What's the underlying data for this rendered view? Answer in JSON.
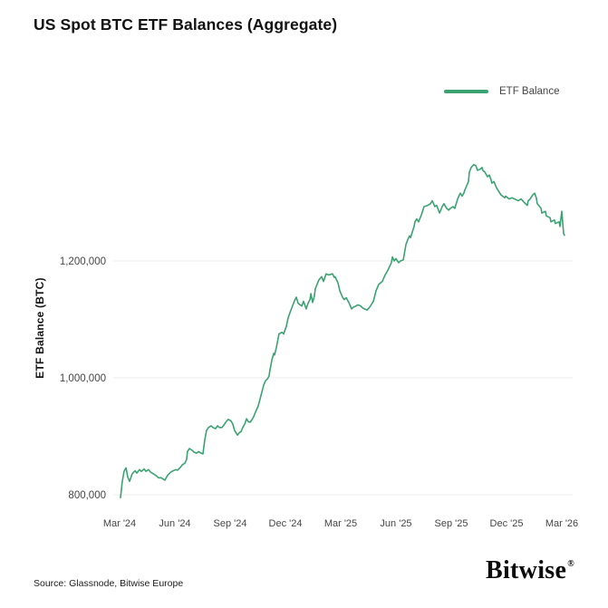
{
  "header": {
    "title": "US Spot BTC ETF Balances (Aggregate)"
  },
  "legend": {
    "items": [
      {
        "label": "ETF Balance",
        "color": "#3ba272"
      }
    ]
  },
  "footer": {
    "source": "Source: Glassnode, Bitwise Europe",
    "brand": "Bitwise",
    "brand_mark": "®"
  },
  "colors": {
    "line": "#3ba272",
    "gridline": "#ececec",
    "tick_text": "#454545",
    "background": "#ffffff"
  },
  "chart_data": {
    "type": "line",
    "title": "US Spot BTC ETF Balances (Aggregate)",
    "xlabel": "",
    "ylabel": "ETF Balance (BTC)",
    "grid": "horizontal-only",
    "legend_position": "top-right",
    "x_unit": "decimal_year",
    "x_range": [
      2024.167,
      2026.167
    ],
    "ylim": [
      790000,
      1380000
    ],
    "x_ticks": [
      {
        "label": "Mar '24",
        "t": 2024.167
      },
      {
        "label": "Jun '24",
        "t": 2024.417
      },
      {
        "label": "Sep '24",
        "t": 2024.667
      },
      {
        "label": "Dec '24",
        "t": 2024.917
      },
      {
        "label": "Mar '25",
        "t": 2025.167
      },
      {
        "label": "Jun '25",
        "t": 2025.417
      },
      {
        "label": "Sep '25",
        "t": 2025.667
      },
      {
        "label": "Dec '25",
        "t": 2025.917
      },
      {
        "label": "Mar '26",
        "t": 2026.167
      }
    ],
    "y_ticks": [
      {
        "label": "800,000",
        "v": 800000
      },
      {
        "label": "1,000,000",
        "v": 1000000
      },
      {
        "label": "1,200,000",
        "v": 1200000
      }
    ],
    "series": [
      {
        "name": "ETF Balance",
        "color": "#3ba272",
        "points": [
          [
            2024.171,
            795000
          ],
          [
            2024.179,
            822000
          ],
          [
            2024.187,
            840000
          ],
          [
            2024.196,
            846000
          ],
          [
            2024.204,
            830000
          ],
          [
            2024.212,
            823000
          ],
          [
            2024.224,
            836000
          ],
          [
            2024.237,
            841000
          ],
          [
            2024.245,
            837000
          ],
          [
            2024.257,
            843000
          ],
          [
            2024.265,
            840000
          ],
          [
            2024.278,
            844000
          ],
          [
            2024.286,
            840000
          ],
          [
            2024.298,
            843000
          ],
          [
            2024.306,
            839000
          ],
          [
            2024.319,
            836000
          ],
          [
            2024.331,
            833000
          ],
          [
            2024.343,
            829000
          ],
          [
            2024.355,
            829000
          ],
          [
            2024.372,
            825000
          ],
          [
            2024.384,
            833000
          ],
          [
            2024.396,
            838000
          ],
          [
            2024.409,
            841000
          ],
          [
            2024.421,
            843000
          ],
          [
            2024.429,
            842000
          ],
          [
            2024.442,
            847000
          ],
          [
            2024.45,
            851000
          ],
          [
            2024.462,
            854000
          ],
          [
            2024.47,
            860000
          ],
          [
            2024.474,
            874000
          ],
          [
            2024.483,
            879000
          ],
          [
            2024.495,
            876000
          ],
          [
            2024.503,
            873000
          ],
          [
            2024.515,
            871000
          ],
          [
            2024.524,
            874000
          ],
          [
            2024.536,
            871000
          ],
          [
            2024.544,
            870000
          ],
          [
            2024.552,
            893000
          ],
          [
            2024.56,
            910000
          ],
          [
            2024.569,
            915000
          ],
          [
            2024.581,
            918000
          ],
          [
            2024.589,
            915000
          ],
          [
            2024.601,
            913000
          ],
          [
            2024.61,
            918000
          ],
          [
            2024.618,
            915000
          ],
          [
            2024.63,
            915000
          ],
          [
            2024.642,
            921000
          ],
          [
            2024.651,
            926000
          ],
          [
            2024.659,
            929000
          ],
          [
            2024.671,
            926000
          ],
          [
            2024.679,
            921000
          ],
          [
            2024.687,
            910000
          ],
          [
            2024.7,
            902000
          ],
          [
            2024.708,
            906000
          ],
          [
            2024.716,
            908000
          ],
          [
            2024.724,
            915000
          ],
          [
            2024.733,
            921000
          ],
          [
            2024.741,
            930000
          ],
          [
            2024.749,
            925000
          ],
          [
            2024.757,
            924000
          ],
          [
            2024.765,
            928000
          ],
          [
            2024.774,
            934000
          ],
          [
            2024.782,
            942000
          ],
          [
            2024.794,
            952000
          ],
          [
            2024.802,
            963000
          ],
          [
            2024.81,
            975000
          ],
          [
            2024.819,
            988000
          ],
          [
            2024.827,
            995000
          ],
          [
            2024.835,
            998000
          ],
          [
            2024.843,
            1003000
          ],
          [
            2024.847,
            1013000
          ],
          [
            2024.856,
            1031000
          ],
          [
            2024.864,
            1042000
          ],
          [
            2024.868,
            1039000
          ],
          [
            2024.876,
            1052000
          ],
          [
            2024.888,
            1075000
          ],
          [
            2024.901,
            1078000
          ],
          [
            2024.909,
            1075000
          ],
          [
            2024.921,
            1088000
          ],
          [
            2024.929,
            1102000
          ],
          [
            2024.938,
            1112000
          ],
          [
            2024.946,
            1120000
          ],
          [
            2024.958,
            1132000
          ],
          [
            2024.966,
            1138000
          ],
          [
            2024.974,
            1128000
          ],
          [
            2024.983,
            1125000
          ],
          [
            2024.991,
            1123000
          ],
          [
            2024.999,
            1131000
          ],
          [
            2025.007,
            1122000
          ],
          [
            2025.011,
            1118000
          ],
          [
            2025.02,
            1128000
          ],
          [
            2025.028,
            1134000
          ],
          [
            2025.032,
            1144000
          ],
          [
            2025.04,
            1129000
          ],
          [
            2025.048,
            1140000
          ],
          [
            2025.052,
            1152000
          ],
          [
            2025.06,
            1160000
          ],
          [
            2025.069,
            1168000
          ],
          [
            2025.081,
            1173000
          ],
          [
            2025.089,
            1165000
          ],
          [
            2025.101,
            1178000
          ],
          [
            2025.114,
            1176000
          ],
          [
            2025.122,
            1177000
          ],
          [
            2025.13,
            1178000
          ],
          [
            2025.138,
            1172000
          ],
          [
            2025.142,
            1173000
          ],
          [
            2025.155,
            1162000
          ],
          [
            2025.163,
            1149000
          ],
          [
            2025.175,
            1138000
          ],
          [
            2025.183,
            1134000
          ],
          [
            2025.192,
            1137000
          ],
          [
            2025.204,
            1129000
          ],
          [
            2025.216,
            1118000
          ],
          [
            2025.224,
            1121000
          ],
          [
            2025.237,
            1123000
          ],
          [
            2025.245,
            1125000
          ],
          [
            2025.257,
            1123000
          ],
          [
            2025.265,
            1120000
          ],
          [
            2025.274,
            1118000
          ],
          [
            2025.286,
            1116000
          ],
          [
            2025.298,
            1121000
          ],
          [
            2025.315,
            1131000
          ],
          [
            2025.327,
            1149000
          ],
          [
            2025.339,
            1160000
          ],
          [
            2025.355,
            1165000
          ],
          [
            2025.368,
            1176000
          ],
          [
            2025.38,
            1184000
          ],
          [
            2025.396,
            1197000
          ],
          [
            2025.401,
            1207000
          ],
          [
            2025.409,
            1200000
          ],
          [
            2025.417,
            1204000
          ],
          [
            2025.429,
            1197000
          ],
          [
            2025.437,
            1200000
          ],
          [
            2025.45,
            1202000
          ],
          [
            2025.462,
            1228000
          ],
          [
            2025.47,
            1236000
          ],
          [
            2025.478,
            1243000
          ],
          [
            2025.483,
            1240000
          ],
          [
            2025.499,
            1259000
          ],
          [
            2025.503,
            1267000
          ],
          [
            2025.511,
            1272000
          ],
          [
            2025.519,
            1267000
          ],
          [
            2025.532,
            1279000
          ],
          [
            2025.544,
            1293000
          ],
          [
            2025.56,
            1295000
          ],
          [
            2025.573,
            1298000
          ],
          [
            2025.581,
            1303000
          ],
          [
            2025.593,
            1293000
          ],
          [
            2025.601,
            1295000
          ],
          [
            2025.614,
            1282000
          ],
          [
            2025.626,
            1293000
          ],
          [
            2025.634,
            1298000
          ],
          [
            2025.646,
            1290000
          ],
          [
            2025.655,
            1287000
          ],
          [
            2025.663,
            1290000
          ],
          [
            2025.675,
            1293000
          ],
          [
            2025.683,
            1290000
          ],
          [
            2025.696,
            1306000
          ],
          [
            2025.704,
            1313000
          ],
          [
            2025.708,
            1316000
          ],
          [
            2025.716,
            1311000
          ],
          [
            2025.724,
            1316000
          ],
          [
            2025.728,
            1321000
          ],
          [
            2025.745,
            1336000
          ],
          [
            2025.749,
            1352000
          ],
          [
            2025.757,
            1360000
          ],
          [
            2025.769,
            1365000
          ],
          [
            2025.778,
            1363000
          ],
          [
            2025.786,
            1355000
          ],
          [
            2025.798,
            1357000
          ],
          [
            2025.806,
            1360000
          ],
          [
            2025.81,
            1355000
          ],
          [
            2025.819,
            1352000
          ],
          [
            2025.831,
            1344000
          ],
          [
            2025.839,
            1347000
          ],
          [
            2025.847,
            1339000
          ],
          [
            2025.851,
            1333000
          ],
          [
            2025.86,
            1336000
          ],
          [
            2025.872,
            1325000
          ],
          [
            2025.88,
            1320000
          ],
          [
            2025.892,
            1313000
          ],
          [
            2025.909,
            1308000
          ],
          [
            2025.913,
            1311000
          ],
          [
            2025.929,
            1306000
          ],
          [
            2025.942,
            1308000
          ],
          [
            2025.954,
            1306000
          ],
          [
            2025.97,
            1303000
          ],
          [
            2025.983,
            1306000
          ],
          [
            2025.995,
            1301000
          ],
          [
            2026.011,
            1295000
          ],
          [
            2026.015,
            1303000
          ],
          [
            2026.024,
            1306000
          ],
          [
            2026.036,
            1313000
          ],
          [
            2026.044,
            1316000
          ],
          [
            2026.052,
            1308000
          ],
          [
            2026.056,
            1298000
          ],
          [
            2026.073,
            1290000
          ],
          [
            2026.077,
            1282000
          ],
          [
            2026.093,
            1285000
          ],
          [
            2026.097,
            1277000
          ],
          [
            2026.114,
            1274000
          ],
          [
            2026.118,
            1267000
          ],
          [
            2026.134,
            1270000
          ],
          [
            2026.138,
            1264000
          ],
          [
            2026.155,
            1267000
          ],
          [
            2026.159,
            1259000
          ],
          [
            2026.167,
            1285000
          ],
          [
            2026.175,
            1247000
          ],
          [
            2026.179,
            1244000
          ]
        ]
      }
    ]
  }
}
